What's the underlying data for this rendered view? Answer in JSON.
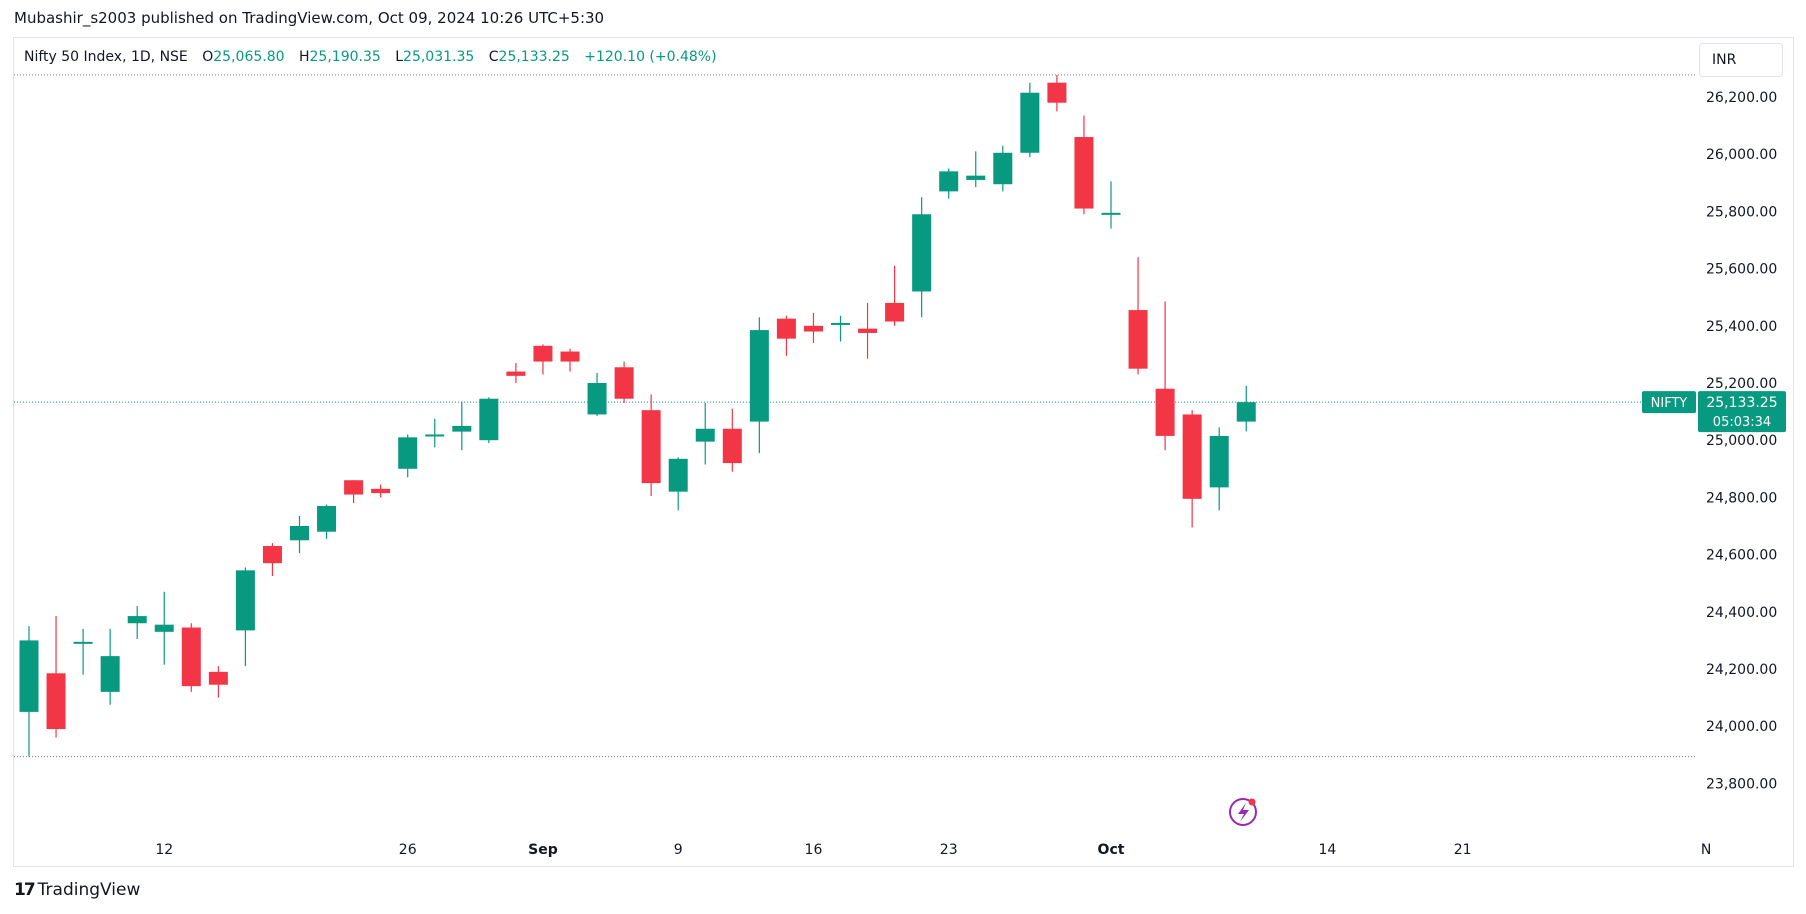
{
  "header": {
    "published_by": "Mubashir_s2003 published on TradingView.com, Oct 09, 2024 10:26 UTC+5:30"
  },
  "legend": {
    "symbol": "Nifty 50 Index, 1D, NSE",
    "open_label": "O",
    "open": "25,065.80",
    "high_label": "H",
    "high": "25,190.35",
    "low_label": "L",
    "low": "25,031.35",
    "close_label": "C",
    "close": "25,133.25",
    "change": "+120.10 (+0.48%)"
  },
  "currency_button": {
    "label": "INR"
  },
  "price_badge": {
    "symbol": "NIFTY",
    "price": "25,133.25",
    "countdown": "05:03:34"
  },
  "footer": {
    "brand": "TradingView"
  },
  "colors": {
    "up": "#089981",
    "down": "#f23645",
    "grid_line": "#e0e3eb",
    "price_line": "#089981",
    "range_line": "#787b86",
    "text": "#131722",
    "accent_icon": "#9c27b0"
  },
  "chart_data": {
    "type": "candlestick",
    "symbol": "Nifty 50 Index",
    "interval": "1D",
    "exchange": "NSE",
    "currency": "INR",
    "y_ticks": [
      26200,
      26000,
      25800,
      25600,
      25400,
      25200,
      25000,
      24800,
      24600,
      24400,
      24200,
      24000,
      23800
    ],
    "y_tick_labels": [
      "26,200.00",
      "26,000.00",
      "25,800.00",
      "25,600.00",
      "25,400.00",
      "25,200.00",
      "25,000.00",
      "24,800.00",
      "24,600.00",
      "24,400.00",
      "24,200.00",
      "24,000.00",
      "23,800.00"
    ],
    "x_labels": [
      {
        "label": "12",
        "bold": false,
        "bar_index": 5
      },
      {
        "label": "26",
        "bold": false,
        "bar_index": 14
      },
      {
        "label": "Sep",
        "bold": true,
        "bar_index": 19
      },
      {
        "label": "9",
        "bold": false,
        "bar_index": 24
      },
      {
        "label": "16",
        "bold": false,
        "bar_index": 29
      },
      {
        "label": "23",
        "bold": false,
        "bar_index": 34
      },
      {
        "label": "Oct",
        "bold": true,
        "bar_index": 40
      },
      {
        "label": "14",
        "bold": false,
        "bar_index": 48
      },
      {
        "label": "21",
        "bold": false,
        "bar_index": 53
      },
      {
        "label": "N",
        "bold": false,
        "bar_index": 62
      }
    ],
    "last_price": 25133.25,
    "period_high": 26277.35,
    "period_low": 23893.7,
    "candles": [
      {
        "o": 24050,
        "h": 24350,
        "l": 23894,
        "c": 24300
      },
      {
        "o": 24185,
        "h": 24385,
        "l": 23960,
        "c": 23990
      },
      {
        "o": 24290,
        "h": 24340,
        "l": 24180,
        "c": 24295
      },
      {
        "o": 24120,
        "h": 24340,
        "l": 24075,
        "c": 24245
      },
      {
        "o": 24360,
        "h": 24420,
        "l": 24305,
        "c": 24385
      },
      {
        "o": 24330,
        "h": 24470,
        "l": 24215,
        "c": 24355
      },
      {
        "o": 24345,
        "h": 24360,
        "l": 24120,
        "c": 24140
      },
      {
        "o": 24190,
        "h": 24210,
        "l": 24100,
        "c": 24145
      },
      {
        "o": 24335,
        "h": 24555,
        "l": 24210,
        "c": 24545
      },
      {
        "o": 24630,
        "h": 24640,
        "l": 24525,
        "c": 24570
      },
      {
        "o": 24650,
        "h": 24735,
        "l": 24605,
        "c": 24700
      },
      {
        "o": 24680,
        "h": 24775,
        "l": 24655,
        "c": 24770
      },
      {
        "o": 24860,
        "h": 24860,
        "l": 24780,
        "c": 24810
      },
      {
        "o": 24830,
        "h": 24845,
        "l": 24800,
        "c": 24815
      },
      {
        "o": 24900,
        "h": 25020,
        "l": 24870,
        "c": 25010
      },
      {
        "o": 25020,
        "h": 25075,
        "l": 24975,
        "c": 25020
      },
      {
        "o": 25030,
        "h": 25135,
        "l": 24965,
        "c": 25050
      },
      {
        "o": 25000,
        "h": 25150,
        "l": 24990,
        "c": 25145
      },
      {
        "o": 25240,
        "h": 25270,
        "l": 25200,
        "c": 25225
      },
      {
        "o": 25330,
        "h": 25335,
        "l": 25230,
        "c": 25275
      },
      {
        "o": 25310,
        "h": 25320,
        "l": 25240,
        "c": 25275
      },
      {
        "o": 25090,
        "h": 25235,
        "l": 25085,
        "c": 25200
      },
      {
        "o": 25255,
        "h": 25275,
        "l": 25130,
        "c": 25145
      },
      {
        "o": 25105,
        "h": 25160,
        "l": 24805,
        "c": 24850
      },
      {
        "o": 24820,
        "h": 24940,
        "l": 24755,
        "c": 24935
      },
      {
        "o": 24995,
        "h": 25130,
        "l": 24915,
        "c": 25040
      },
      {
        "o": 25040,
        "h": 25110,
        "l": 24890,
        "c": 24920
      },
      {
        "o": 25065,
        "h": 25430,
        "l": 24955,
        "c": 25385
      },
      {
        "o": 25425,
        "h": 25435,
        "l": 25295,
        "c": 25355
      },
      {
        "o": 25400,
        "h": 25445,
        "l": 25340,
        "c": 25380
      },
      {
        "o": 25405,
        "h": 25435,
        "l": 25345,
        "c": 25410
      },
      {
        "o": 25390,
        "h": 25480,
        "l": 25285,
        "c": 25375
      },
      {
        "o": 25480,
        "h": 25610,
        "l": 25400,
        "c": 25415
      },
      {
        "o": 25520,
        "h": 25850,
        "l": 25430,
        "c": 25790
      },
      {
        "o": 25870,
        "h": 25950,
        "l": 25845,
        "c": 25940
      },
      {
        "o": 25910,
        "h": 26010,
        "l": 25885,
        "c": 25925
      },
      {
        "o": 25895,
        "h": 26030,
        "l": 25870,
        "c": 26005
      },
      {
        "o": 26005,
        "h": 26250,
        "l": 25990,
        "c": 26215
      },
      {
        "o": 26250,
        "h": 26277,
        "l": 26150,
        "c": 26180
      },
      {
        "o": 26060,
        "h": 26135,
        "l": 25790,
        "c": 25810
      },
      {
        "o": 25790,
        "h": 25905,
        "l": 25740,
        "c": 25795
      },
      {
        "o": 25455,
        "h": 25640,
        "l": 25230,
        "c": 25250
      },
      {
        "o": 25180,
        "h": 25485,
        "l": 24965,
        "c": 25015
      },
      {
        "o": 25090,
        "h": 25105,
        "l": 24695,
        "c": 24795
      },
      {
        "o": 24835,
        "h": 25045,
        "l": 24755,
        "c": 25015
      },
      {
        "o": 25065,
        "h": 25190,
        "l": 25031,
        "c": 25133
      }
    ]
  }
}
